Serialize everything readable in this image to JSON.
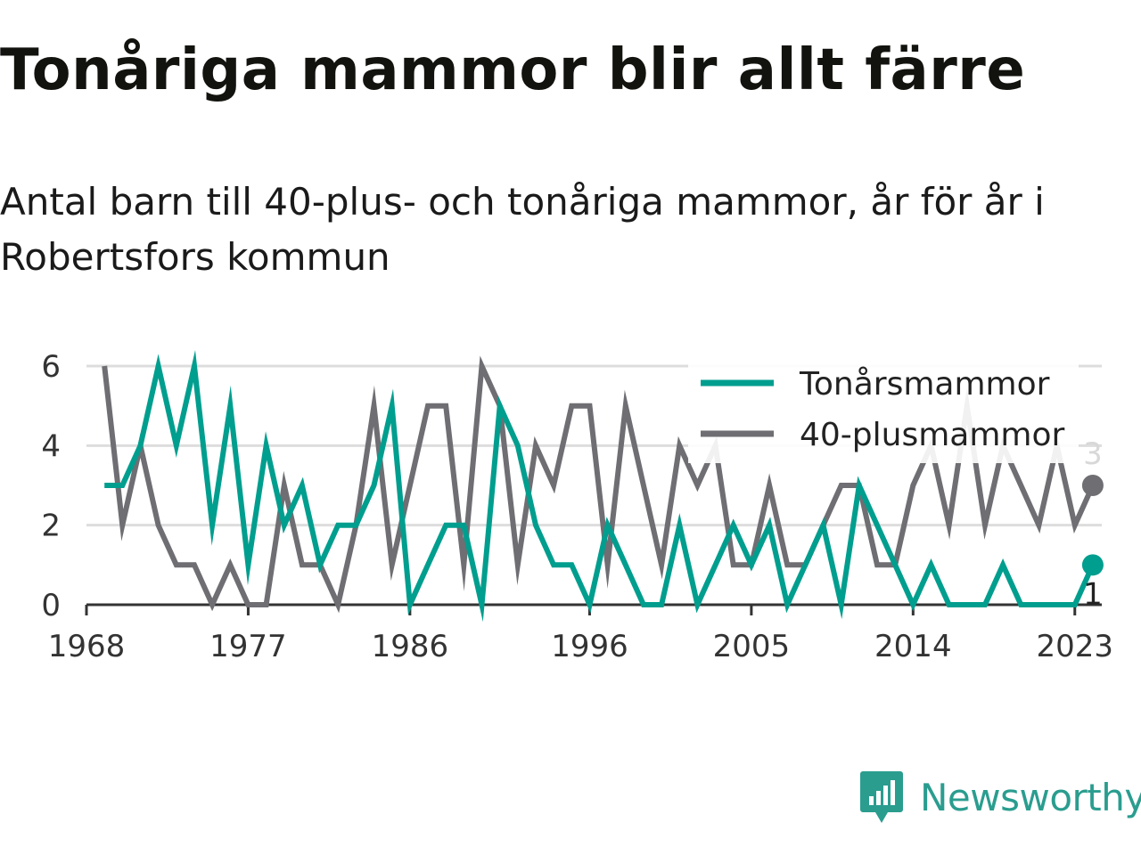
{
  "title": "Tonåriga mammor blir allt färre",
  "subtitle": "Antal barn till 40-plus- och tonåriga mammor, år för år i Robertsfors kommun",
  "brand": {
    "name": "Newsworthy"
  },
  "colors": {
    "teens": "#009e8e",
    "forty": "#6e6e73",
    "grid": "#dddddd",
    "axis": "#333333"
  },
  "chart_data": {
    "type": "line",
    "title": "Tonåriga mammor blir allt färre",
    "subtitle": "Antal barn till 40-plus- och tonåriga mammor, år för år i Robertsfors kommun",
    "x": [
      1969,
      1970,
      1971,
      1972,
      1973,
      1974,
      1975,
      1976,
      1977,
      1978,
      1979,
      1980,
      1981,
      1982,
      1983,
      1984,
      1985,
      1986,
      1987,
      1988,
      1989,
      1990,
      1991,
      1992,
      1993,
      1994,
      1995,
      1996,
      1997,
      1998,
      1999,
      2000,
      2001,
      2002,
      2003,
      2004,
      2005,
      2006,
      2007,
      2008,
      2009,
      2010,
      2011,
      2012,
      2013,
      2014,
      2015,
      2016,
      2017,
      2018,
      2019,
      2020,
      2021,
      2022,
      2023,
      2024
    ],
    "x_ticks": [
      "1968",
      "1977",
      "1986",
      "1996",
      "2005",
      "2014",
      "2023"
    ],
    "y_ticks": [
      "0",
      "2",
      "4",
      "6"
    ],
    "ylim": [
      0,
      6
    ],
    "xlim": [
      1968,
      2024.5
    ],
    "grid": true,
    "legend_position": "top-right",
    "series": [
      {
        "name": "Tonårsmammor",
        "color": "#009e8e",
        "values": [
          3,
          3,
          4,
          6,
          4,
          6,
          2,
          5,
          1,
          4,
          2,
          3,
          1,
          2,
          2,
          3,
          5,
          0,
          1,
          2,
          2,
          0,
          5,
          4,
          2,
          1,
          1,
          0,
          2,
          1,
          0,
          0,
          2,
          0,
          1,
          2,
          1,
          2,
          0,
          1,
          2,
          0,
          3,
          2,
          1,
          0,
          1,
          0,
          0,
          0,
          1,
          0,
          0,
          0,
          0,
          1
        ],
        "end_label": "1"
      },
      {
        "name": "40-plusmammor",
        "color": "#6e6e73",
        "values": [
          6,
          2,
          4,
          2,
          1,
          1,
          0,
          1,
          0,
          0,
          3,
          1,
          1,
          0,
          2,
          5,
          1,
          3,
          5,
          5,
          1,
          6,
          5,
          1,
          4,
          3,
          5,
          5,
          1,
          5,
          3,
          1,
          4,
          3,
          4,
          1,
          1,
          3,
          1,
          1,
          2,
          3,
          3,
          1,
          1,
          3,
          4,
          2,
          5,
          2,
          4,
          3,
          2,
          4,
          2,
          3
        ],
        "end_label": "3"
      }
    ]
  }
}
